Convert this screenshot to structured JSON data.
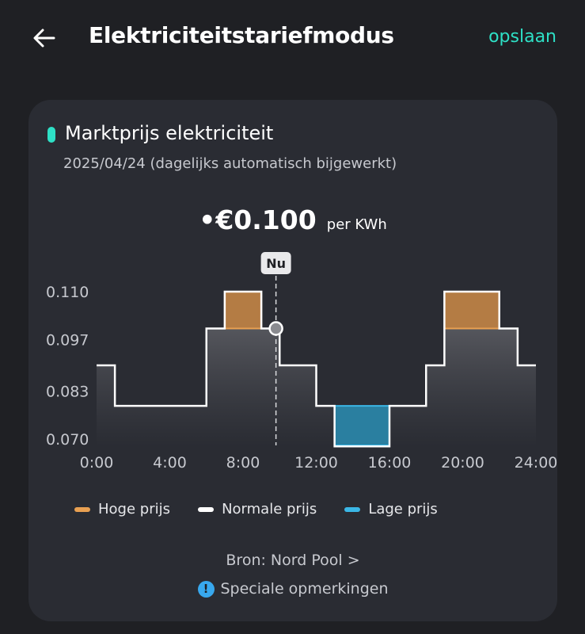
{
  "header": {
    "title": "Elektriciteitstariefmodus",
    "save_label": "opslaan"
  },
  "card": {
    "title": "Marktprijs elektriciteit",
    "date": "2025/04/24 (dagelijks automatisch bijgewerkt)",
    "price_prefix": "•€0.100",
    "price_unit": "per KWh",
    "now_label": "Nu",
    "source": "Bron: Nord Pool >",
    "notes_label": "Speciale opmerkingen"
  },
  "legend": {
    "high": "Hoge prijs",
    "normal": "Normale prijs",
    "low": "Lage prijs"
  },
  "colors": {
    "accent": "#2ee0c6",
    "high": "#e8a052",
    "normal": "#ffffff",
    "low": "#3bb7e6"
  },
  "icons": {
    "back": "arrow-left-icon",
    "info": "info-icon"
  },
  "chart_data": {
    "type": "line",
    "step": true,
    "x_ticks": [
      "0:00",
      "4:00",
      "8:00",
      "12:00",
      "16:00",
      "20:00",
      "24:00"
    ],
    "y_ticks": [
      "0.070",
      "0.083",
      "0.097",
      "0.110"
    ],
    "xlim": [
      0,
      24
    ],
    "ylim": [
      0.07,
      0.11
    ],
    "now_hour": 9.8,
    "now_price": 0.1,
    "segments": [
      {
        "start": 0,
        "end": 1,
        "price": 0.09
      },
      {
        "start": 1,
        "end": 6,
        "price": 0.079
      },
      {
        "start": 6,
        "end": 7,
        "price": 0.1
      },
      {
        "start": 7,
        "end": 9,
        "price": 0.11,
        "level": "high"
      },
      {
        "start": 9,
        "end": 10,
        "price": 0.1
      },
      {
        "start": 10,
        "end": 12,
        "price": 0.09
      },
      {
        "start": 12,
        "end": 13,
        "price": 0.079
      },
      {
        "start": 13,
        "end": 16,
        "price": 0.068,
        "level": "low"
      },
      {
        "start": 16,
        "end": 18,
        "price": 0.079
      },
      {
        "start": 18,
        "end": 19,
        "price": 0.09
      },
      {
        "start": 19,
        "end": 22,
        "price": 0.11,
        "level": "high"
      },
      {
        "start": 22,
        "end": 23,
        "price": 0.1
      },
      {
        "start": 23,
        "end": 24,
        "price": 0.09
      }
    ]
  }
}
